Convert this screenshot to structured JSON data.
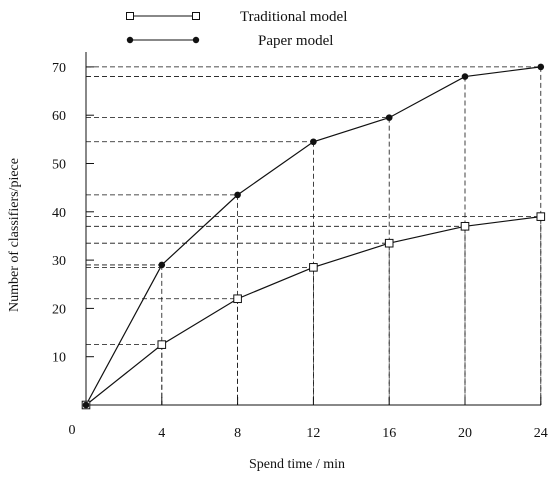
{
  "chart_data": {
    "type": "line",
    "xlabel": "Spend time / min",
    "ylabel": "Number of classifiers/piece",
    "xlim": [
      0,
      24
    ],
    "ylim": [
      0,
      70
    ],
    "x_ticks": [
      4,
      8,
      12,
      16,
      20,
      24
    ],
    "y_ticks": [
      10,
      20,
      30,
      40,
      50,
      60,
      70
    ],
    "origin_label": "0",
    "legend_position": "top",
    "grid": false,
    "guide_lines": "dashed projections from each point to both axes",
    "series": [
      {
        "name": "Traditional model",
        "marker": "open-square",
        "color": "#111111",
        "x": [
          0,
          4,
          8,
          12,
          16,
          20,
          24
        ],
        "y": [
          0,
          12.5,
          22,
          28.5,
          33.5,
          37,
          39
        ]
      },
      {
        "name": "Paper model",
        "marker": "filled-circle",
        "color": "#111111",
        "x": [
          0,
          4,
          8,
          12,
          16,
          20,
          24
        ],
        "y": [
          0,
          29,
          43.5,
          54.5,
          59.5,
          68,
          70
        ]
      }
    ]
  }
}
